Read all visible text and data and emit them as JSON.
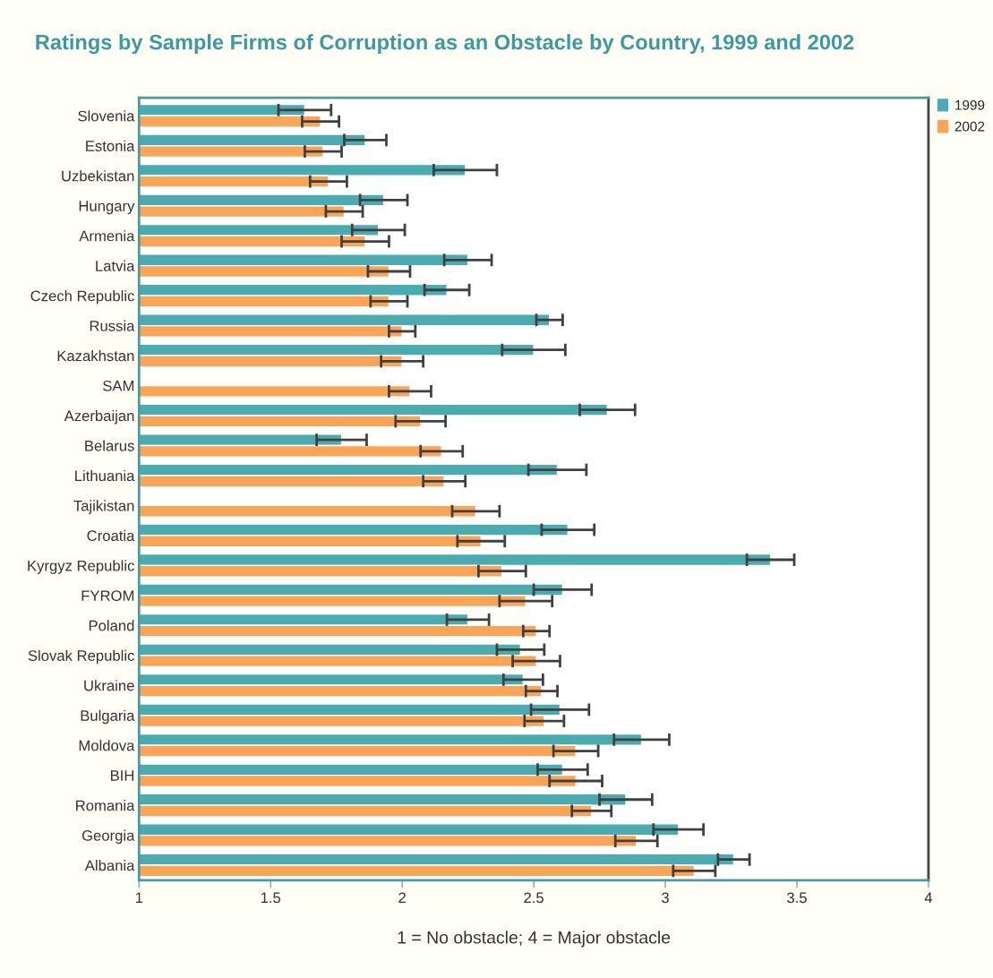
{
  "chart_data": {
    "type": "bar",
    "orientation": "horizontal",
    "title": "Ratings by Sample Firms of Corruption as an Obstacle by Country, 1999 and 2002",
    "xlabel": "1 = No obstacle; 4 = Major obstacle",
    "categories": [
      "Slovenia",
      "Estonia",
      "Uzbekistan",
      "Hungary",
      "Armenia",
      "Latvia",
      "Czech Republic",
      "Russia",
      "Kazakhstan",
      "SAM",
      "Azerbaijan",
      "Belarus",
      "Lithuania",
      "Tajikistan",
      "Croatia",
      "Kyrgyz Republic",
      "FYROM",
      "Poland",
      "Slovak Republic",
      "Ukraine",
      "Bulgaria",
      "Moldova",
      "BIH",
      "Romania",
      "Georgia",
      "Albania"
    ],
    "series": [
      {
        "name": "1999",
        "color": "#4aacb1",
        "values": [
          1.63,
          1.86,
          2.24,
          1.93,
          1.91,
          2.25,
          2.17,
          2.56,
          2.5,
          null,
          2.78,
          1.77,
          2.59,
          null,
          2.63,
          3.4,
          2.61,
          2.25,
          2.45,
          2.46,
          2.6,
          2.91,
          2.61,
          2.85,
          3.05,
          3.26
        ],
        "errors": [
          0.1,
          0.08,
          0.12,
          0.09,
          0.1,
          0.09,
          0.085,
          0.05,
          0.12,
          null,
          0.105,
          0.095,
          0.11,
          null,
          0.1,
          0.09,
          0.11,
          0.08,
          0.09,
          0.075,
          0.11,
          0.105,
          0.095,
          0.1,
          0.095,
          0.06
        ]
      },
      {
        "name": "2002",
        "color": "#fba456",
        "values": [
          1.69,
          1.7,
          1.72,
          1.78,
          1.86,
          1.95,
          1.95,
          2.0,
          2.0,
          2.03,
          2.07,
          2.15,
          2.16,
          2.28,
          2.3,
          2.38,
          2.47,
          2.51,
          2.51,
          2.53,
          2.54,
          2.66,
          2.66,
          2.72,
          2.89,
          3.11
        ],
        "errors": [
          0.07,
          0.07,
          0.07,
          0.07,
          0.09,
          0.08,
          0.07,
          0.05,
          0.08,
          0.08,
          0.095,
          0.08,
          0.08,
          0.09,
          0.09,
          0.09,
          0.1,
          0.05,
          0.09,
          0.06,
          0.075,
          0.085,
          0.1,
          0.075,
          0.08,
          0.08
        ]
      }
    ],
    "xlim": [
      1,
      4
    ],
    "xticks": [
      1,
      1.5,
      2,
      2.5,
      3,
      3.5,
      4
    ],
    "grid": false,
    "legend": "top right"
  }
}
